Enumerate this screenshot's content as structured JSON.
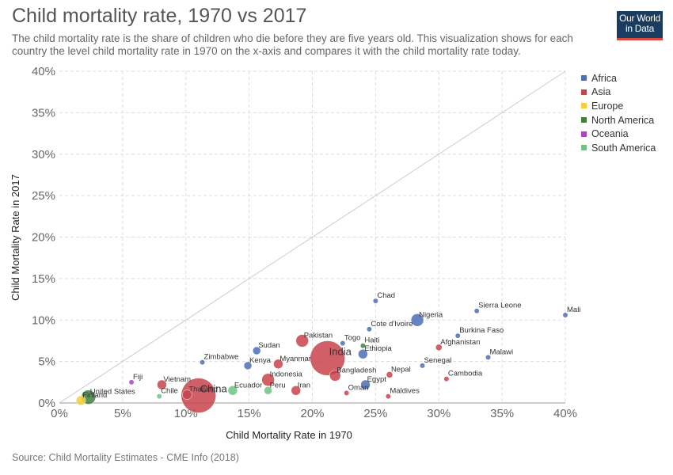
{
  "title": "Child mortality rate, 1970 vs 2017",
  "subtitle": "The child mortality rate is the share of children who die before they are five years old. This visualization shows for each country the level child mortality rate in 1970 on the x-axis and compares it with the child mortality rate today.",
  "logo": {
    "line1": "Our World",
    "line2": "in Data"
  },
  "source": "Source: Child Mortality Estimates - CME Info (2018)",
  "colors": {
    "Africa": "#4c6fb5",
    "Asia": "#c9434d",
    "Europe": "#f5cf3a",
    "North America": "#3f7f3f",
    "Oceania": "#a64ab8",
    "South America": "#6bc482",
    "gridline": "#dddddd",
    "diagonal": "#cccccc"
  },
  "legend": {
    "items": [
      "Africa",
      "Asia",
      "Europe",
      "North America",
      "Oceania",
      "South America"
    ]
  },
  "chart_data": {
    "type": "scatter",
    "xlabel": "Child Mortality Rate in 1970",
    "ylabel": "Child Mortality Rate in 2017",
    "xlim": [
      0,
      40
    ],
    "ylim": [
      0,
      40
    ],
    "x_ticks": [
      "0%",
      "5%",
      "10%",
      "15%",
      "20%",
      "25%",
      "30%",
      "35%",
      "40%"
    ],
    "y_ticks": [
      "0%",
      "5%",
      "10%",
      "15%",
      "20%",
      "25%",
      "30%",
      "35%",
      "40%"
    ],
    "grid": true,
    "legend_position": "right",
    "reference_line": "y = x",
    "labeled_points": [
      {
        "label": "Chad",
        "x": 25.0,
        "y": 12.3,
        "region": "Africa"
      },
      {
        "label": "Sierra Leone",
        "x": 33.0,
        "y": 11.1,
        "region": "Africa"
      },
      {
        "label": "Mali",
        "x": 40.0,
        "y": 10.6,
        "region": "Africa"
      },
      {
        "label": "Nigeria",
        "x": 28.3,
        "y": 10.0,
        "region": "Africa"
      },
      {
        "label": "Cote d'Ivoire",
        "x": 24.5,
        "y": 8.9,
        "region": "Africa"
      },
      {
        "label": "Burkina Faso",
        "x": 31.5,
        "y": 8.1,
        "region": "Africa"
      },
      {
        "label": "Pakistan",
        "x": 19.2,
        "y": 7.5,
        "region": "Asia"
      },
      {
        "label": "Togo",
        "x": 22.4,
        "y": 7.2,
        "region": "Africa"
      },
      {
        "label": "Afghanistan",
        "x": 30.0,
        "y": 6.7,
        "region": "Asia"
      },
      {
        "label": "Haiti",
        "x": 24.0,
        "y": 6.9,
        "region": "North America"
      },
      {
        "label": "Sudan",
        "x": 15.6,
        "y": 6.3,
        "region": "Africa"
      },
      {
        "label": "Ethiopia",
        "x": 24.0,
        "y": 5.9,
        "region": "Africa"
      },
      {
        "label": "Malawi",
        "x": 33.9,
        "y": 5.5,
        "region": "Africa"
      },
      {
        "label": "India",
        "x": 21.2,
        "y": 5.4,
        "region": "Asia"
      },
      {
        "label": "Zimbabwe",
        "x": 11.3,
        "y": 4.9,
        "region": "Africa"
      },
      {
        "label": "Kenya",
        "x": 14.9,
        "y": 4.5,
        "region": "Africa"
      },
      {
        "label": "Myanmar",
        "x": 17.3,
        "y": 4.7,
        "region": "Asia"
      },
      {
        "label": "Senegal",
        "x": 28.7,
        "y": 4.5,
        "region": "Africa"
      },
      {
        "label": "Bangladesh",
        "x": 21.8,
        "y": 3.3,
        "region": "Asia"
      },
      {
        "label": "Nepal",
        "x": 26.1,
        "y": 3.4,
        "region": "Asia"
      },
      {
        "label": "Indonesia",
        "x": 16.5,
        "y": 2.8,
        "region": "Asia"
      },
      {
        "label": "Cambodia",
        "x": 30.6,
        "y": 2.9,
        "region": "Asia"
      },
      {
        "label": "China",
        "x": 11.0,
        "y": 0.9,
        "region": "Asia"
      },
      {
        "label": "Fiji",
        "x": 5.7,
        "y": 2.5,
        "region": "Oceania"
      },
      {
        "label": "Vietnam",
        "x": 8.1,
        "y": 2.2,
        "region": "Asia"
      },
      {
        "label": "Egypt",
        "x": 24.2,
        "y": 2.2,
        "region": "Africa"
      },
      {
        "label": "United States",
        "x": 2.3,
        "y": 0.7,
        "region": "North America"
      },
      {
        "label": "Thailand",
        "x": 10.1,
        "y": 1.0,
        "region": "Asia"
      },
      {
        "label": "Ecuador",
        "x": 13.7,
        "y": 1.5,
        "region": "South America"
      },
      {
        "label": "Peru",
        "x": 16.5,
        "y": 1.5,
        "region": "South America"
      },
      {
        "label": "Iran",
        "x": 18.7,
        "y": 1.5,
        "region": "Asia"
      },
      {
        "label": "Chile",
        "x": 7.9,
        "y": 0.8,
        "region": "South America"
      },
      {
        "label": "Oman",
        "x": 22.7,
        "y": 1.2,
        "region": "Asia"
      },
      {
        "label": "Finland",
        "x": 1.7,
        "y": 0.3,
        "region": "Europe"
      },
      {
        "label": "Maldives",
        "x": 26.0,
        "y": 0.8,
        "region": "Asia"
      }
    ]
  }
}
